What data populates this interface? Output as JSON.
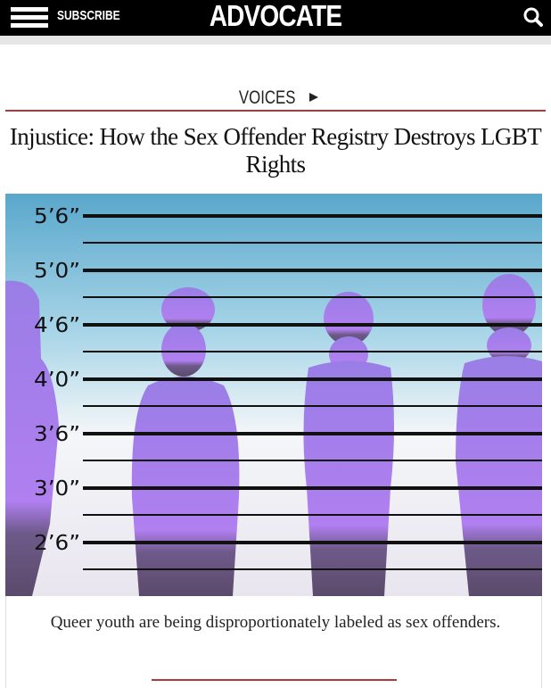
{
  "header": {
    "menu_label": "SUBSCRIBE",
    "logo": "ADVOCATE"
  },
  "article": {
    "section": "VOICES",
    "title": "Injustice: How the Sex Offender Registry Destroys LGBT Rights",
    "image": {
      "height_labels": [
        "5’6”",
        "5’0”",
        "4’6”",
        "4’0”",
        "3’6”",
        "3’0”",
        "2’6”"
      ]
    },
    "caption": "Queer youth are being disproportionately labeled as sex offenders."
  }
}
